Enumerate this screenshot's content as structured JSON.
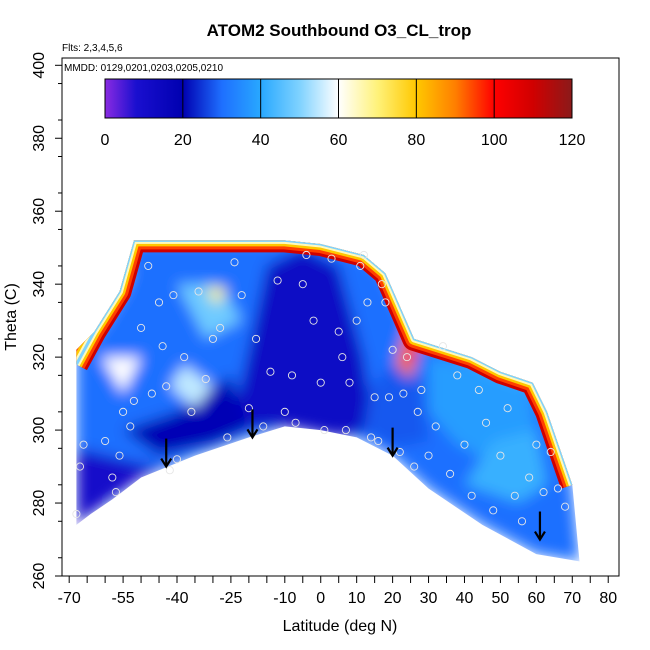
{
  "chart_data": {
    "type": "heatmap",
    "title": "ATOM2 Southbound O3_CL_trop",
    "annotations": [
      "Flts: 2,3,4,5,6",
      "MMDD: 0129,0201,0203,0205,0210"
    ],
    "xlabel": "Latitude (deg N)",
    "ylabel": "Theta (C)",
    "xlim": [
      -72,
      83
    ],
    "ylim": [
      260,
      402
    ],
    "x_ticks": [
      -70,
      -55,
      -40,
      -25,
      -10,
      0,
      10,
      20,
      30,
      40,
      50,
      60,
      70,
      80
    ],
    "y_ticks": [
      260,
      280,
      300,
      320,
      340,
      360,
      380,
      400
    ],
    "colorbar": {
      "label_ticks": [
        0,
        20,
        40,
        60,
        80,
        100,
        120
      ],
      "range": [
        0,
        120
      ],
      "stops": [
        {
          "v": 0,
          "color": "#8a2be2"
        },
        {
          "v": 8,
          "color": "#1a0fcf"
        },
        {
          "v": 20,
          "color": "#0000b0"
        },
        {
          "v": 30,
          "color": "#1e6fff"
        },
        {
          "v": 40,
          "color": "#28a8ff"
        },
        {
          "v": 50,
          "color": "#7fd2ff"
        },
        {
          "v": 60,
          "color": "#ffffff"
        },
        {
          "v": 70,
          "color": "#fff27a"
        },
        {
          "v": 80,
          "color": "#ffc800"
        },
        {
          "v": 90,
          "color": "#ff7f00"
        },
        {
          "v": 100,
          "color": "#ff0000"
        },
        {
          "v": 110,
          "color": "#d00000"
        },
        {
          "v": 120,
          "color": "#8b1a1a"
        }
      ]
    },
    "field_outline": [
      [
        -68,
        274
      ],
      [
        -68,
        322
      ],
      [
        -63,
        327
      ],
      [
        -56,
        338
      ],
      [
        -52,
        352
      ],
      [
        -10,
        352
      ],
      [
        0,
        351
      ],
      [
        12,
        348
      ],
      [
        18,
        343
      ],
      [
        26,
        325
      ],
      [
        42,
        320
      ],
      [
        50,
        316
      ],
      [
        59,
        313
      ],
      [
        63,
        305
      ],
      [
        70,
        285
      ],
      [
        72,
        264
      ],
      [
        60,
        266
      ],
      [
        45,
        274
      ],
      [
        30,
        284
      ],
      [
        20,
        293
      ],
      [
        10,
        298
      ],
      [
        0,
        300
      ],
      [
        -10,
        301
      ],
      [
        -20,
        298
      ],
      [
        -35,
        293
      ],
      [
        -50,
        287
      ],
      [
        -58,
        281
      ],
      [
        -64,
        277
      ]
    ],
    "regions": [
      {
        "v": 10,
        "pts": [
          [
            -68,
            274
          ],
          [
            -68,
            295
          ],
          [
            -55,
            292
          ],
          [
            -45,
            290
          ],
          [
            -35,
            293
          ],
          [
            -50,
            287
          ],
          [
            -64,
            277
          ]
        ]
      },
      {
        "v": 12,
        "pts": [
          [
            -25,
            300
          ],
          [
            -15,
            345
          ],
          [
            -5,
            350
          ],
          [
            5,
            345
          ],
          [
            12,
            320
          ],
          [
            15,
            300
          ],
          [
            5,
            298
          ],
          [
            -10,
            301
          ]
        ]
      },
      {
        "v": 18,
        "pts": [
          [
            -55,
            300
          ],
          [
            -45,
            293
          ],
          [
            -30,
            296
          ],
          [
            -20,
            300
          ],
          [
            -25,
            315
          ],
          [
            -40,
            305
          ]
        ]
      },
      {
        "v": 28,
        "pts": [
          [
            12,
            300
          ],
          [
            20,
            295
          ],
          [
            30,
            297
          ],
          [
            28,
            315
          ],
          [
            20,
            318
          ],
          [
            14,
            312
          ]
        ]
      },
      {
        "v": 38,
        "pts": [
          [
            30,
            320
          ],
          [
            45,
            318
          ],
          [
            58,
            313
          ],
          [
            60,
            300
          ],
          [
            50,
            290
          ],
          [
            38,
            296
          ],
          [
            30,
            305
          ]
        ]
      },
      {
        "v": 48,
        "pts": [
          [
            -40,
            340
          ],
          [
            -28,
            340
          ],
          [
            -22,
            330
          ],
          [
            -32,
            325
          ]
        ]
      },
      {
        "v": 42,
        "pts": [
          [
            40,
            285
          ],
          [
            55,
            280
          ],
          [
            63,
            285
          ],
          [
            60,
            300
          ],
          [
            48,
            297
          ]
        ]
      },
      {
        "v": 50,
        "pts": [
          [
            -66,
            322
          ],
          [
            -60,
            330
          ],
          [
            -55,
            338
          ],
          [
            -52,
            345
          ],
          [
            -58,
            340
          ],
          [
            -64,
            330
          ]
        ]
      },
      {
        "v": 55,
        "pts": [
          [
            -42,
            312
          ],
          [
            -38,
            318
          ],
          [
            -30,
            312
          ],
          [
            -35,
            306
          ]
        ]
      },
      {
        "v": 60,
        "pts": [
          [
            -61,
            320
          ],
          [
            -50,
            320
          ],
          [
            -55,
            310
          ]
        ]
      },
      {
        "v": 70,
        "pts": [
          [
            -32,
            339
          ],
          [
            -26,
            339
          ],
          [
            -29,
            334
          ]
        ]
      },
      {
        "v": 90,
        "pts": [
          [
            21,
            318
          ],
          [
            25,
            332
          ],
          [
            28,
            326
          ],
          [
            25,
            314
          ]
        ]
      },
      {
        "v": 100,
        "pts": [
          [
            23,
            317
          ],
          [
            25,
            326
          ],
          [
            27,
            320
          ]
        ]
      }
    ],
    "edge_band": [
      [
        -68,
        318
      ],
      [
        -63,
        327
      ],
      [
        -56,
        338
      ],
      [
        -52,
        352
      ],
      [
        -10,
        352
      ],
      [
        0,
        351
      ],
      [
        12,
        348
      ],
      [
        18,
        343
      ],
      [
        26,
        325
      ],
      [
        42,
        320
      ],
      [
        50,
        316
      ],
      [
        59,
        313
      ],
      [
        63,
        305
      ],
      [
        70,
        285
      ]
    ],
    "points": [
      [
        -68,
        277
      ],
      [
        -67,
        290
      ],
      [
        -66,
        296
      ],
      [
        -60,
        297
      ],
      [
        -58,
        287
      ],
      [
        -57,
        283
      ],
      [
        -56,
        293
      ],
      [
        -55,
        305
      ],
      [
        -53,
        301
      ],
      [
        -52,
        308
      ],
      [
        -50,
        328
      ],
      [
        -48,
        345
      ],
      [
        -47,
        310
      ],
      [
        -45,
        335
      ],
      [
        -44,
        323
      ],
      [
        -43,
        312
      ],
      [
        -42,
        289
      ],
      [
        -41,
        337
      ],
      [
        -40,
        292
      ],
      [
        -38,
        320
      ],
      [
        -36,
        305
      ],
      [
        -34,
        338
      ],
      [
        -32,
        314
      ],
      [
        -30,
        325
      ],
      [
        -28,
        328
      ],
      [
        -26,
        298
      ],
      [
        -24,
        346
      ],
      [
        -22,
        337
      ],
      [
        -20,
        306
      ],
      [
        -18,
        325
      ],
      [
        -16,
        301
      ],
      [
        -14,
        316
      ],
      [
        -12,
        341
      ],
      [
        -10,
        305
      ],
      [
        -8,
        315
      ],
      [
        -7,
        302
      ],
      [
        -5,
        340
      ],
      [
        -4,
        348
      ],
      [
        -2,
        330
      ],
      [
        0,
        313
      ],
      [
        1,
        300
      ],
      [
        3,
        347
      ],
      [
        5,
        327
      ],
      [
        6,
        320
      ],
      [
        7,
        300
      ],
      [
        8,
        313
      ],
      [
        10,
        330
      ],
      [
        11,
        345
      ],
      [
        12,
        348
      ],
      [
        13,
        335
      ],
      [
        14,
        298
      ],
      [
        15,
        309
      ],
      [
        16,
        297
      ],
      [
        17,
        340
      ],
      [
        18,
        335
      ],
      [
        19,
        309
      ],
      [
        20,
        322
      ],
      [
        22,
        294
      ],
      [
        23,
        310
      ],
      [
        24,
        320
      ],
      [
        26,
        290
      ],
      [
        27,
        305
      ],
      [
        28,
        311
      ],
      [
        30,
        293
      ],
      [
        32,
        301
      ],
      [
        34,
        323
      ],
      [
        36,
        288
      ],
      [
        38,
        315
      ],
      [
        40,
        296
      ],
      [
        42,
        282
      ],
      [
        44,
        311
      ],
      [
        46,
        302
      ],
      [
        48,
        278
      ],
      [
        50,
        293
      ],
      [
        52,
        306
      ],
      [
        54,
        282
      ],
      [
        56,
        275
      ],
      [
        58,
        287
      ],
      [
        60,
        296
      ],
      [
        62,
        283
      ],
      [
        64,
        294
      ],
      [
        66,
        284
      ],
      [
        68,
        279
      ]
    ],
    "arrows": [
      {
        "lat": -43,
        "theta": 290
      },
      {
        "lat": -19,
        "theta": 298
      },
      {
        "lat": 20,
        "theta": 293
      },
      {
        "lat": 61,
        "theta": 270
      }
    ]
  }
}
